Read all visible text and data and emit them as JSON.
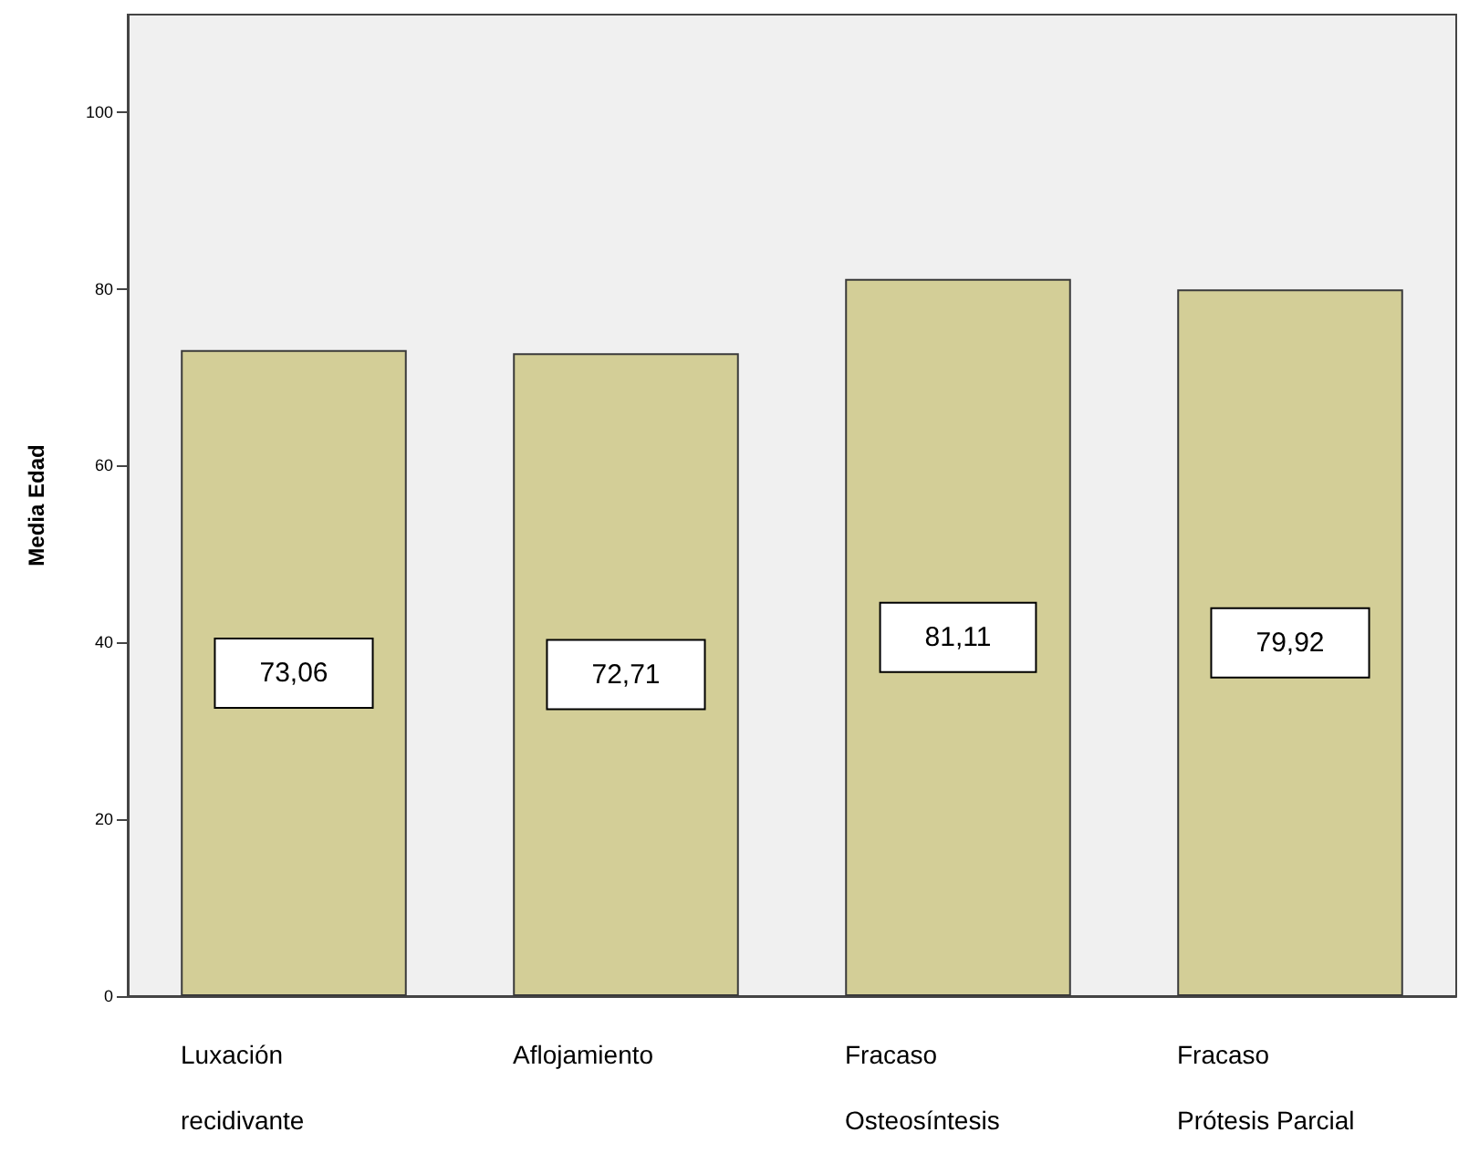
{
  "chart_data": {
    "type": "bar",
    "ylabel": "Media Edad",
    "categories": [
      "Luxación recidivante",
      "Aflojamiento",
      "Fracaso Osteosíntesis",
      "Fracaso Prótesis Parcial"
    ],
    "values": [
      73.06,
      72.71,
      81.11,
      79.92
    ],
    "value_labels": [
      "73,06",
      "72,71",
      "81,11",
      "79,92"
    ],
    "color": "#d3ce97",
    "ylim": [
      0,
      111
    ],
    "yticks": [
      0,
      20,
      40,
      60,
      80,
      100
    ],
    "grid": false
  }
}
